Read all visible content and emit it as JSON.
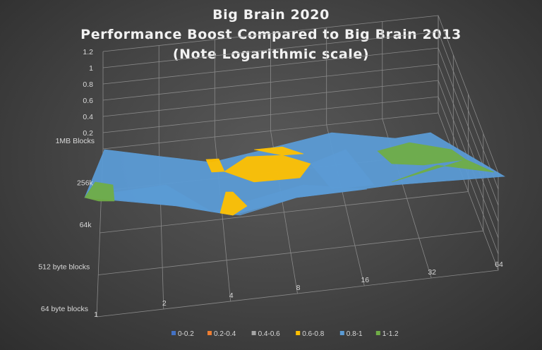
{
  "chart_data": {
    "type": "surface",
    "title_lines": [
      "Big Brain 2020",
      "Performance Boost Compared to Big Brain 2013",
      "(Note Logarithmic scale)"
    ],
    "x_categories": [
      "1",
      "2",
      "4",
      "8",
      "16",
      "32",
      "64"
    ],
    "y_categories": [
      "64 byte blocks",
      "512 byte blocks",
      "64k",
      "256k",
      "1MB Blocks"
    ],
    "z_ticks": [
      "0.2",
      "0.4",
      "0.6",
      "0.8",
      "1",
      "1.2"
    ],
    "z_range": [
      0,
      1.2
    ],
    "grid": true,
    "legend_position": "bottom",
    "bands": [
      {
        "name": "0-0.2",
        "color": "#4472C4"
      },
      {
        "name": "0.2-0.4",
        "color": "#ED7D31"
      },
      {
        "name": "0.4-0.6",
        "color": "#A5A5A5"
      },
      {
        "name": "0.6-0.8",
        "color": "#FFC000"
      },
      {
        "name": "0.8-1",
        "color": "#5B9BD5"
      },
      {
        "name": "1-1.2",
        "color": "#70AD47"
      }
    ]
  }
}
